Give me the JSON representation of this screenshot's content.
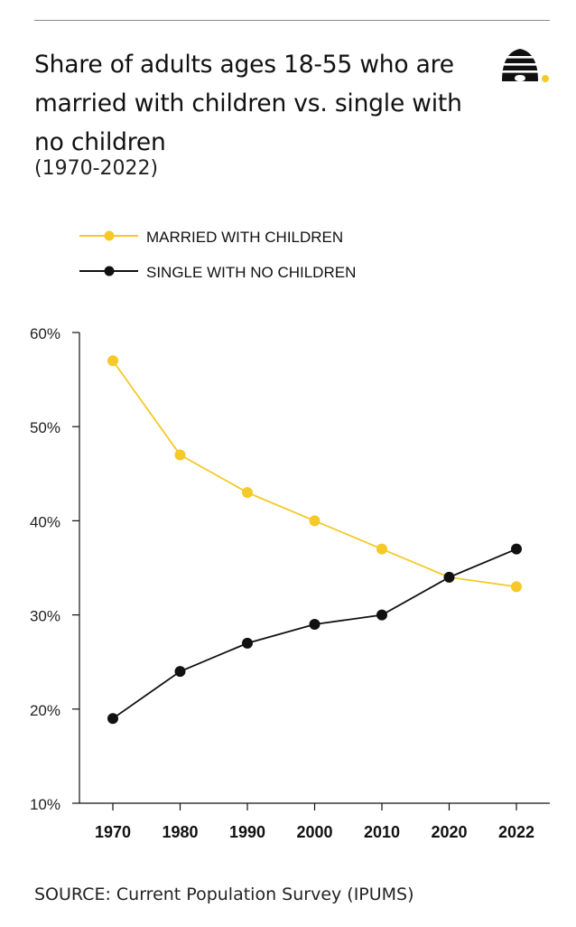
{
  "header": {
    "title": "Share of adults ages 18-55 who are married with children vs. single with no children",
    "subtitle": "(1970-2022)"
  },
  "logo": {
    "icon": "beehive-icon"
  },
  "chart_data": {
    "type": "line",
    "x": [
      "1970",
      "1980",
      "1990",
      "2000",
      "2010",
      "2020",
      "2022"
    ],
    "series": [
      {
        "name": "MARRIED WITH CHILDREN",
        "color": "#f5c928",
        "values": [
          57,
          47,
          43,
          40,
          37,
          34,
          33
        ]
      },
      {
        "name": "SINGLE WITH NO CHILDREN",
        "color": "#111111",
        "values": [
          19,
          24,
          27,
          29,
          30,
          34,
          37
        ]
      }
    ],
    "yticks": [
      "60%",
      "50%",
      "40%",
      "30%",
      "20%",
      "10%"
    ],
    "ylim": [
      10,
      60
    ],
    "grid": false,
    "legend_position": "top-left"
  },
  "footer": {
    "source": "SOURCE: Current Population Survey (IPUMS)"
  }
}
